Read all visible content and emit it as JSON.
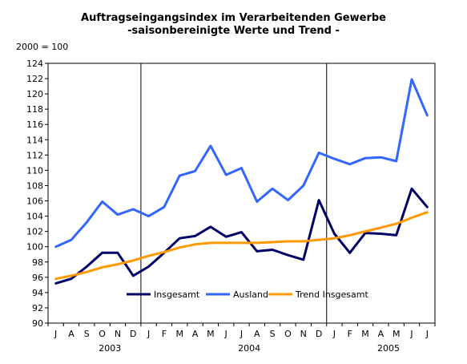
{
  "chart_data": {
    "type": "line",
    "title": "Auftragseingangsindex im Verarbeitenden Gewerbe",
    "subtitle": "-saisonbereinigte Werte und Trend -",
    "unit_label": "2000 = 100",
    "ylim": [
      90,
      124
    ],
    "yticks": [
      90,
      92,
      94,
      96,
      98,
      100,
      102,
      104,
      106,
      108,
      110,
      112,
      114,
      116,
      118,
      120,
      122,
      124
    ],
    "x": [
      "J",
      "A",
      "S",
      "O",
      "N",
      "D",
      "J",
      "F",
      "M",
      "A",
      "M",
      "J",
      "J",
      "A",
      "S",
      "O",
      "N",
      "D",
      "J",
      "F",
      "M",
      "A",
      "M",
      "J",
      "J"
    ],
    "years": [
      {
        "label": "2003",
        "center_index": 3.5
      },
      {
        "label": "2004",
        "center_index": 12.5
      },
      {
        "label": "2005",
        "center_index": 21.5
      }
    ],
    "year_separators": [
      5.5,
      17.5
    ],
    "grid": false,
    "legend_position": "lower-middle",
    "series": [
      {
        "name": "Insgesamt",
        "color": "#000066",
        "values": [
          95.2,
          95.8,
          97.4,
          99.2,
          99.2,
          96.2,
          97.4,
          99.2,
          101.1,
          101.4,
          102.6,
          101.3,
          101.9,
          99.4,
          99.6,
          98.9,
          98.3,
          106.1,
          101.7,
          99.2,
          101.8,
          101.7,
          101.5,
          107.6,
          105.2
        ]
      },
      {
        "name": "Ausland",
        "color": "#3366ff",
        "values": [
          100.0,
          100.9,
          103.2,
          105.9,
          104.2,
          104.9,
          104.0,
          105.2,
          109.3,
          109.9,
          113.2,
          109.4,
          110.3,
          105.9,
          107.6,
          106.1,
          108.0,
          112.3,
          111.5,
          110.8,
          111.6,
          111.7,
          111.2,
          121.9,
          117.2
        ]
      },
      {
        "name": "Trend Insgesamt",
        "color": "#ff9900",
        "values": [
          95.8,
          96.2,
          96.7,
          97.3,
          97.7,
          98.2,
          98.8,
          99.3,
          99.9,
          100.3,
          100.5,
          100.5,
          100.5,
          100.5,
          100.6,
          100.7,
          100.7,
          100.9,
          101.1,
          101.5,
          102.0,
          102.5,
          103.0,
          103.8,
          104.5
        ]
      }
    ]
  }
}
